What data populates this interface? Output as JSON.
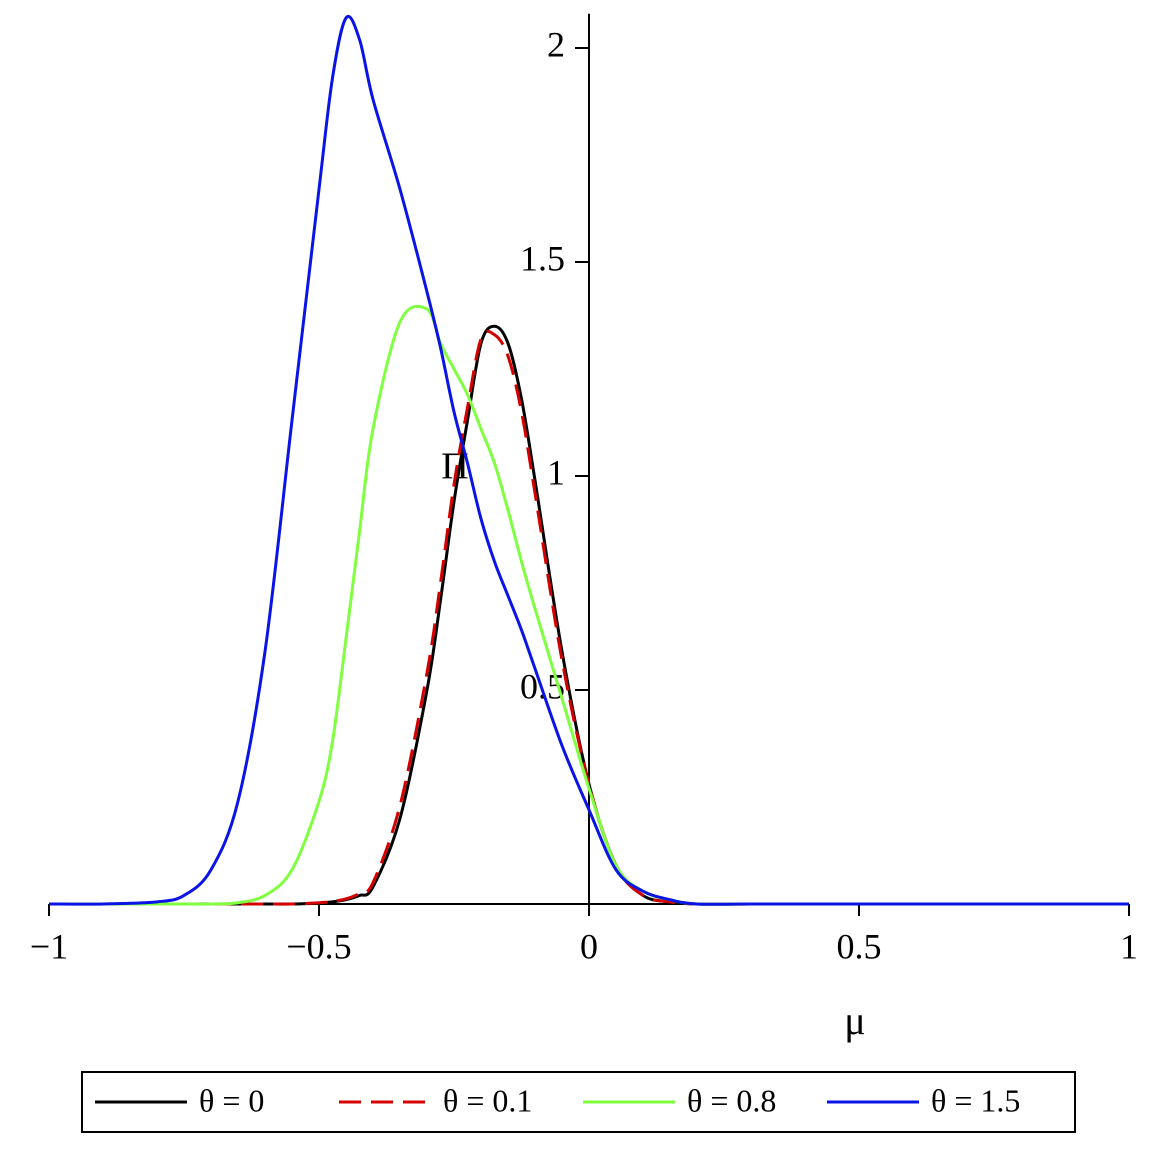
{
  "chart_data": {
    "type": "line",
    "x_label": "μ",
    "y_label": "Π",
    "x": [
      -1,
      -0.9,
      -0.8,
      -0.75,
      -0.7,
      -0.65,
      -0.6,
      -0.55,
      -0.5,
      -0.475,
      -0.45,
      -0.425,
      -0.4,
      -0.35,
      -0.3,
      -0.275,
      -0.25,
      -0.225,
      -0.2,
      -0.175,
      -0.15,
      -0.125,
      -0.1,
      -0.05,
      0,
      0.05,
      0.1,
      0.15,
      0.2,
      0.3,
      0.5,
      1
    ],
    "series": [
      {
        "name": "θ = 0",
        "color": "#000000",
        "style": "solid",
        "values": [
          0,
          0,
          0,
          0,
          0,
          0,
          0,
          0,
          0.002,
          0.005,
          0.01,
          0.02,
          0.04,
          0.2,
          0.5,
          0.71,
          0.94,
          1.13,
          1.31,
          1.35,
          1.31,
          1.18,
          0.99,
          0.59,
          0.28,
          0.09,
          0.02,
          0.005,
          0,
          0,
          0,
          0
        ]
      },
      {
        "name": "θ = 0.1",
        "color": "#d40000",
        "style": "dashed",
        "values": [
          0,
          0,
          0,
          0,
          0,
          0,
          0,
          0,
          0.003,
          0.006,
          0.012,
          0.025,
          0.05,
          0.23,
          0.54,
          0.75,
          0.98,
          1.16,
          1.32,
          1.33,
          1.28,
          1.15,
          0.96,
          0.57,
          0.28,
          0.09,
          0.02,
          0.005,
          0,
          0,
          0,
          0
        ]
      },
      {
        "name": "θ = 0.8",
        "color": "#7fff3f",
        "style": "solid",
        "values": [
          0,
          0,
          0,
          0,
          0,
          0.003,
          0.02,
          0.08,
          0.24,
          0.38,
          0.62,
          0.87,
          1.11,
          1.36,
          1.39,
          1.31,
          1.25,
          1.19,
          1.11,
          1.03,
          0.92,
          0.8,
          0.69,
          0.48,
          0.27,
          0.09,
          0.03,
          0.01,
          0,
          0,
          0,
          0
        ]
      },
      {
        "name": "θ = 1.5",
        "color": "#0a14e6",
        "style": "solid",
        "values": [
          0,
          0,
          0.005,
          0.02,
          0.08,
          0.24,
          0.59,
          1.13,
          1.67,
          1.93,
          2.07,
          2.02,
          1.88,
          1.67,
          1.43,
          1.3,
          1.15,
          1.03,
          0.9,
          0.8,
          0.72,
          0.64,
          0.55,
          0.37,
          0.22,
          0.08,
          0.03,
          0.01,
          0,
          0,
          0,
          0
        ]
      }
    ],
    "xlim": [
      -1,
      1
    ],
    "ylim": [
      0,
      2.08
    ],
    "xticks": [
      {
        "value": -1,
        "label": "−1"
      },
      {
        "value": -0.5,
        "label": "−0.5"
      },
      0,
      0.5,
      1
    ],
    "yticks": [
      0.5,
      1,
      1.5,
      2
    ],
    "legend": "bottom",
    "grid": false
  }
}
